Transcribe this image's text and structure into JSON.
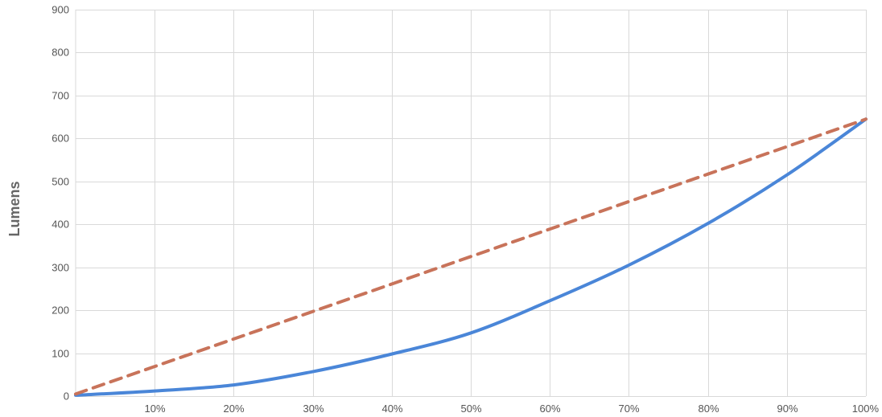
{
  "chart_data": {
    "type": "line",
    "title": "",
    "xlabel": "",
    "ylabel": "Lumens",
    "x": [
      0,
      10,
      20,
      30,
      40,
      50,
      60,
      70,
      80,
      90,
      100
    ],
    "x_tick_values": [
      10,
      20,
      30,
      40,
      50,
      60,
      70,
      80,
      90,
      100
    ],
    "x_tick_labels": [
      "10%",
      "20%",
      "30%",
      "40%",
      "50%",
      "60%",
      "70%",
      "80%",
      "90%",
      "100%"
    ],
    "y_tick_values": [
      0,
      100,
      200,
      300,
      400,
      500,
      600,
      700,
      800,
      900
    ],
    "y_tick_labels": [
      "0",
      "100",
      "200",
      "300",
      "400",
      "500",
      "600",
      "700",
      "800",
      "900"
    ],
    "xlim": [
      0,
      100
    ],
    "ylim": [
      0,
      900
    ],
    "grid": true,
    "legend": "none",
    "series": [
      {
        "style": "solid",
        "color": "#4a86d8",
        "values": [
          2,
          12,
          26,
          57,
          98,
          147,
          222,
          305,
          402,
          515,
          645
        ]
      },
      {
        "style": "dashed",
        "color": "#c8735a",
        "values": [
          5,
          69,
          133,
          197,
          261,
          325,
          389,
          453,
          517,
          581,
          645
        ]
      }
    ]
  }
}
